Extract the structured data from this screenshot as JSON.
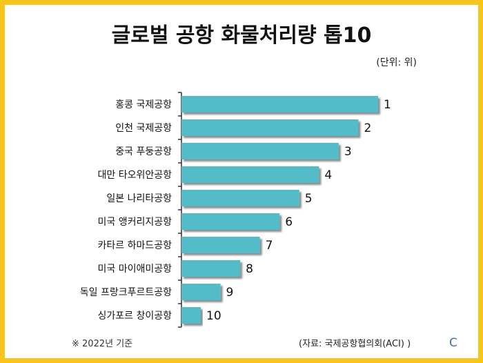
{
  "header": {
    "title": "글로벌 공항 화물처리량 톱10",
    "unit": "(단위: 위)"
  },
  "footer": {
    "note": "※ 2022년 기준",
    "source": "(자료: 국제공항협의회(ACI) )",
    "mark": "C"
  },
  "colors": {
    "bar": "#53bcc8",
    "border": "#f7c51c"
  },
  "chart_data": {
    "type": "bar",
    "orientation": "horizontal",
    "title": "글로벌 공항 화물처리량 톱10",
    "categories": [
      "홍콩 국제공항",
      "인천 국제공항",
      "중국 푸둥공항",
      "대만 타오위안공항",
      "일본 나리타공항",
      "미국 앵커리지공항",
      "카타르 하마드공항",
      "미국 마이애미공항",
      "독일 프랑크푸르트공항",
      "싱가포르 창이공항"
    ],
    "values": [
      1,
      2,
      3,
      4,
      5,
      6,
      7,
      8,
      9,
      10
    ],
    "value_labels": [
      "1",
      "2",
      "3",
      "4",
      "5",
      "6",
      "7",
      "8",
      "9",
      "10"
    ],
    "bar_length_encoding": "inverse rank (rank 1 longest)",
    "grid": false,
    "legend": "none"
  }
}
